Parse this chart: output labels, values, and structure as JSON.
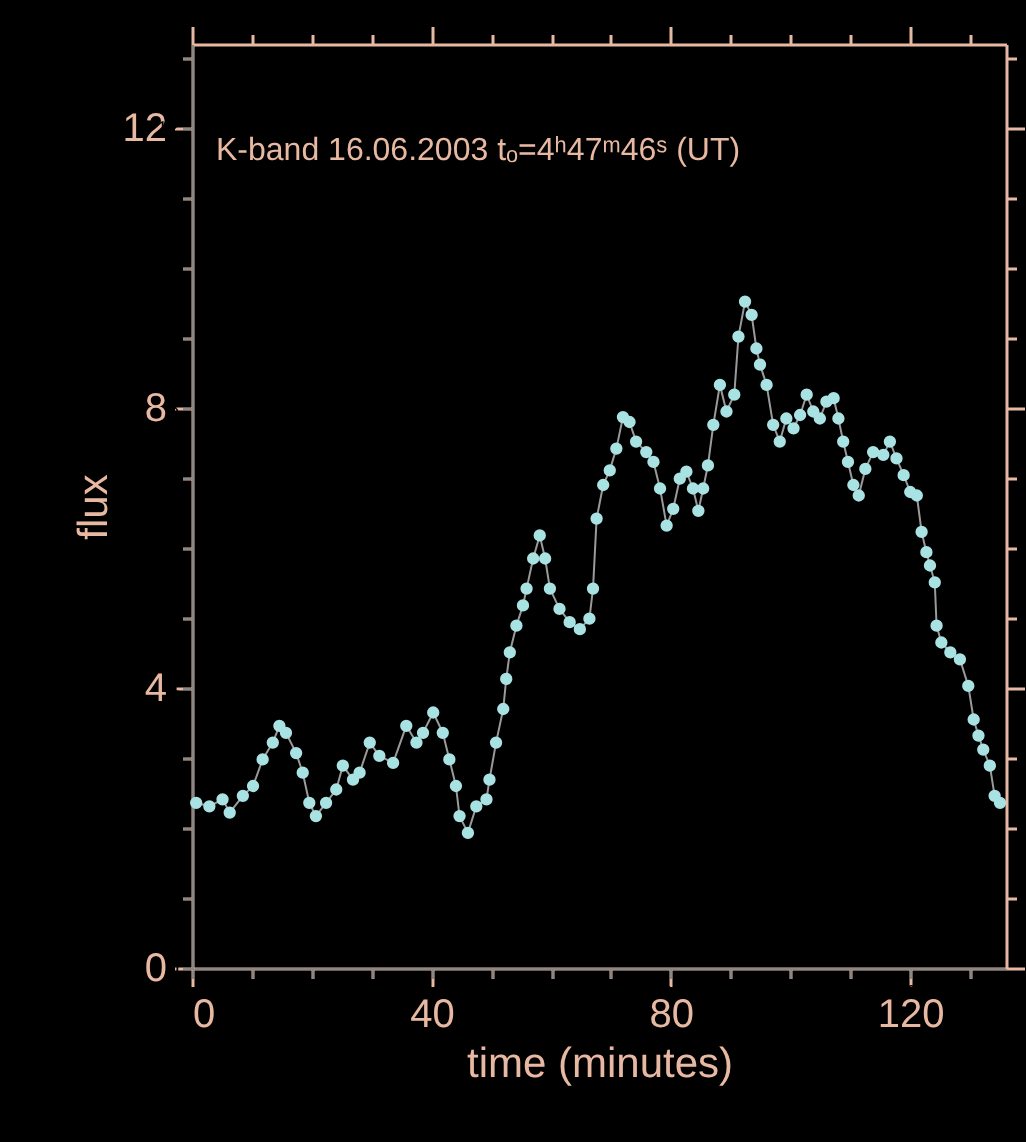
{
  "chart_data": {
    "type": "line",
    "title": "K-band 16.06.2003 tₒ=4ʰ47ᵐ46ˢ (UT)",
    "xlabel": "time (minutes)",
    "ylabel": "flux",
    "x": [
      0.7,
      2.9,
      5.1,
      6.3,
      8.5,
      10.2,
      11.8,
      13.5,
      14.6,
      15.7,
      17.4,
      18.5,
      19.6,
      20.7,
      22.4,
      24.1,
      25.2,
      26.9,
      28.0,
      29.7,
      31.3,
      33.6,
      35.8,
      37.5,
      38.6,
      40.3,
      41.9,
      43.0,
      44.1,
      44.7,
      46.1,
      47.5,
      49.2,
      49.7,
      50.8,
      52.0,
      52.5,
      53.1,
      54.2,
      55.3,
      55.9,
      57.0,
      58.1,
      59.0,
      59.8,
      61.4,
      63.1,
      64.8,
      66.4,
      67.0,
      67.6,
      68.7,
      69.8,
      70.9,
      72.0,
      73.1,
      74.2,
      75.9,
      77.1,
      78.2,
      79.3,
      80.4,
      81.5,
      82.6,
      83.7,
      84.6,
      85.4,
      86.2,
      87.1,
      88.2,
      89.3,
      90.6,
      91.3,
      92.4,
      93.5,
      94.3,
      94.9,
      96.0,
      97.1,
      98.2,
      99.3,
      100.5,
      101.6,
      102.7,
      103.8,
      104.9,
      106.0,
      107.2,
      108.0,
      108.8,
      109.6,
      110.5,
      111.4,
      112.5,
      113.8,
      115.5,
      116.6,
      117.7,
      118.9,
      120.0,
      121.1,
      121.9,
      122.7,
      123.3,
      124.1,
      124.4,
      125.2,
      126.7,
      128.3,
      129.7,
      130.6,
      131.4,
      132.2,
      133.3,
      134.1,
      135.0
    ],
    "series": [
      {
        "color": "#a9e2e2",
        "values": [
          2.36,
          2.31,
          2.41,
          2.22,
          2.46,
          2.6,
          2.98,
          3.22,
          3.46,
          3.36,
          3.07,
          2.79,
          2.36,
          2.17,
          2.36,
          2.55,
          2.89,
          2.69,
          2.79,
          3.22,
          3.03,
          2.93,
          3.46,
          3.22,
          3.36,
          3.65,
          3.36,
          2.98,
          2.6,
          2.17,
          1.93,
          2.31,
          2.41,
          2.69,
          3.22,
          3.7,
          4.13,
          4.51,
          4.89,
          5.18,
          5.42,
          5.85,
          6.18,
          5.85,
          5.42,
          5.13,
          4.94,
          4.84,
          4.99,
          5.42,
          6.42,
          6.9,
          7.11,
          7.42,
          7.87,
          7.8,
          7.52,
          7.37,
          7.23,
          6.85,
          6.32,
          6.56,
          6.99,
          7.09,
          6.85,
          6.53,
          6.85,
          7.18,
          7.76,
          8.33,
          7.95,
          8.19,
          9.02,
          9.52,
          9.33,
          8.85,
          8.62,
          8.33,
          7.76,
          7.52,
          7.85,
          7.71,
          7.9,
          8.19,
          7.95,
          7.85,
          8.09,
          8.14,
          7.85,
          7.52,
          7.23,
          6.9,
          6.75,
          7.13,
          7.37,
          7.33,
          7.52,
          7.28,
          7.04,
          6.8,
          6.75,
          6.23,
          5.94,
          5.75,
          5.51,
          4.89,
          4.65,
          4.51,
          4.41,
          4.03,
          3.55,
          3.32,
          3.12,
          2.89,
          2.46,
          2.36
        ]
      }
    ],
    "xlim": [
      0,
      136
    ],
    "ylim": [
      0,
      13.2
    ],
    "xticks": [
      0,
      {
        "value": 10,
        "label": null
      },
      {
        "value": 20,
        "label": null
      },
      {
        "value": 30,
        "label": null
      },
      40,
      {
        "value": 50,
        "label": null
      },
      {
        "value": 60,
        "label": null
      },
      {
        "value": 70,
        "label": null
      },
      80,
      {
        "value": 90,
        "label": null
      },
      {
        "value": 100,
        "label": null
      },
      {
        "value": 110,
        "label": null
      },
      120,
      {
        "value": 130,
        "label": null
      }
    ],
    "yticks": [
      0,
      {
        "value": 1,
        "label": null
      },
      {
        "value": 2,
        "label": null
      },
      {
        "value": 3,
        "label": null
      },
      4,
      {
        "value": 5,
        "label": null
      },
      {
        "value": 6,
        "label": null
      },
      {
        "value": 7,
        "label": null
      },
      8,
      {
        "value": 9,
        "label": null
      },
      {
        "value": 10,
        "label": null
      },
      {
        "value": 11,
        "label": null
      },
      12,
      {
        "value": 13,
        "label": null
      }
    ],
    "marker": "circle",
    "line_style": "solid",
    "grid": false
  }
}
